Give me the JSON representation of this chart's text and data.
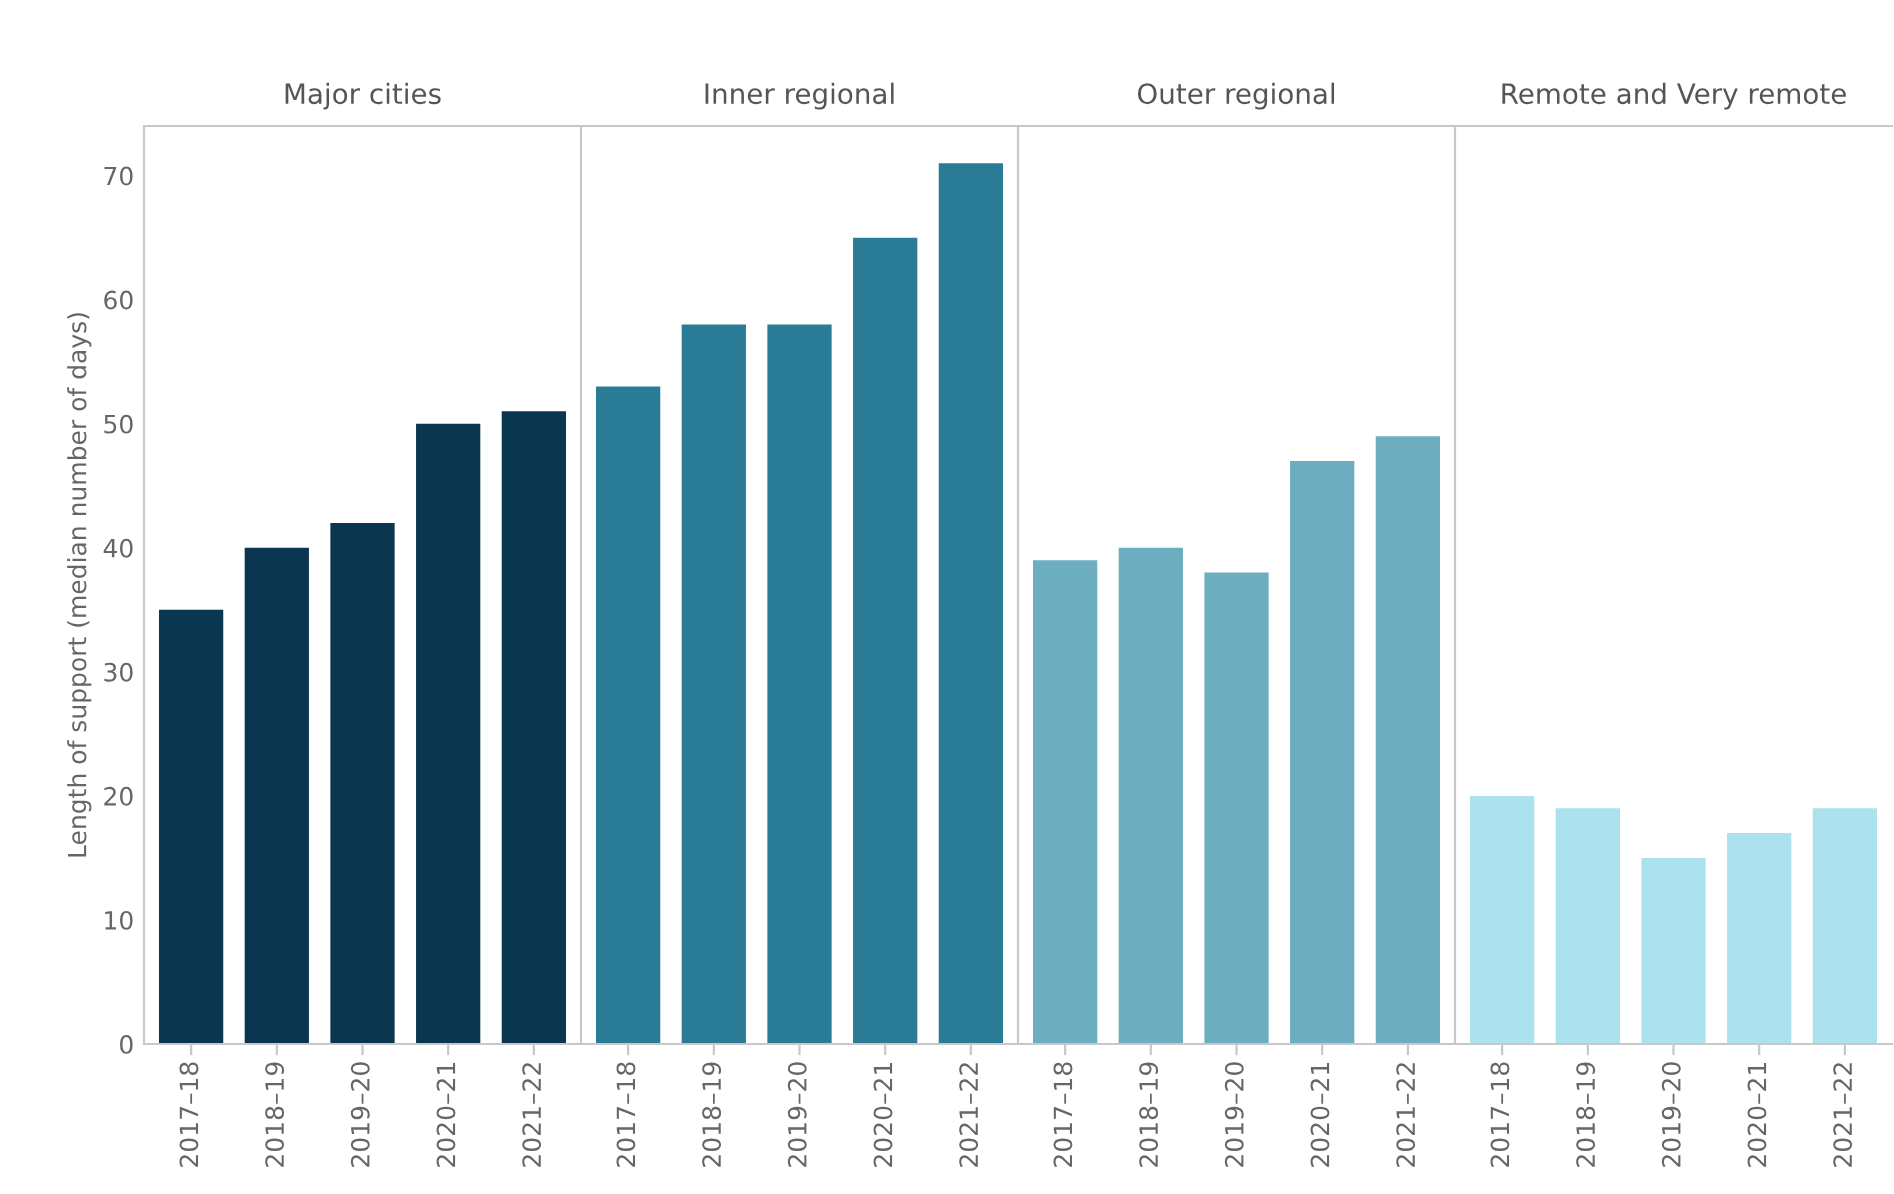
{
  "chart_data": [
    {
      "type": "bar",
      "title": "Major cities",
      "ylabel": "Length of support (median number of days)",
      "categories": [
        "2017–18",
        "2018–19",
        "2019–20",
        "2020–21",
        "2021–22"
      ],
      "values": [
        35,
        40,
        42,
        50,
        51
      ],
      "color": "#0b3650",
      "ylim": [
        0,
        74
      ],
      "yticks": [
        0,
        10,
        20,
        30,
        40,
        50,
        60,
        70
      ]
    },
    {
      "type": "bar",
      "title": "Inner regional",
      "categories": [
        "2017–18",
        "2018–19",
        "2019–20",
        "2020–21",
        "2021–22"
      ],
      "values": [
        53,
        58,
        58,
        65,
        71
      ],
      "color": "#2a7c96",
      "ylim": [
        0,
        74
      ],
      "yticks": [
        0,
        10,
        20,
        30,
        40,
        50,
        60,
        70
      ],
      "tick_labels": "x"
    },
    {
      "type": "bar",
      "title": "Outer regional",
      "categories": [
        "2017–18",
        "2018–19",
        "2019–20",
        "2020–21",
        "2021–22"
      ],
      "values": [
        39,
        40,
        38,
        47,
        49
      ],
      "color": "#6caebf",
      "ylim": [
        0,
        74
      ],
      "yticks": [
        0,
        10,
        20,
        30,
        40,
        50,
        60,
        70
      ],
      "tick_labels": "x"
    },
    {
      "type": "bar",
      "title": "Remote and Very remote",
      "categories": [
        "2017–18",
        "2018–19",
        "2019–20",
        "2020–21",
        "2021–22"
      ],
      "values": [
        20,
        19,
        15,
        17,
        19
      ],
      "color": "#ace2ed",
      "ylim": [
        0,
        74
      ],
      "yticks": [
        0,
        10,
        20,
        30,
        40,
        50,
        60,
        70
      ],
      "tick_labels": "x"
    }
  ]
}
